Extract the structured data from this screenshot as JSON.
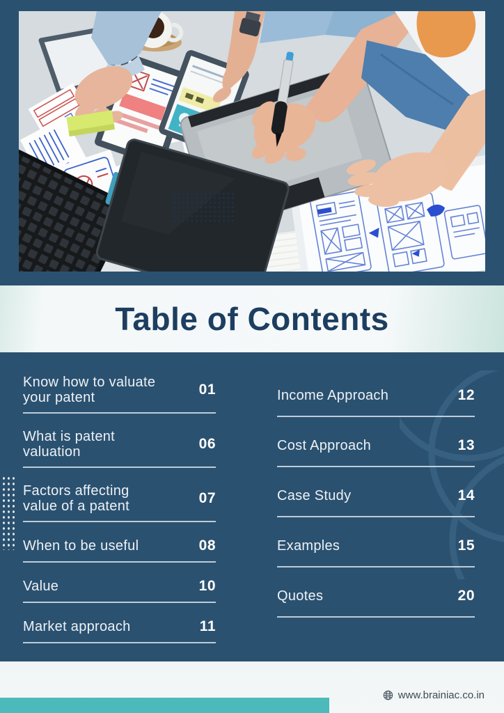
{
  "page": {
    "title": "Table of Contents",
    "website": "www.brainiac.co.in"
  },
  "toc": {
    "left_column": [
      {
        "label": "Know how to valuate your patent",
        "page": "01"
      },
      {
        "label": "What is patent valuation",
        "page": "06"
      },
      {
        "label": "Factors affecting value of a patent",
        "page": "07"
      },
      {
        "label": "When to be useful",
        "page": "08"
      },
      {
        "label": "Value",
        "page": "10"
      },
      {
        "label": "Market approach",
        "page": "11"
      }
    ],
    "right_column": [
      {
        "label": "Income Approach",
        "page": "12"
      },
      {
        "label": "Cost Approach",
        "page": "13"
      },
      {
        "label": "Case Study",
        "page": "14"
      },
      {
        "label": "Examples",
        "page": "15"
      },
      {
        "label": "Quotes",
        "page": "20"
      }
    ]
  },
  "colors": {
    "background_navy": "#2b5170",
    "title_navy": "#1d3e60",
    "band_light": "#f4f8f9",
    "accent_teal": "#4cb9ba",
    "toc_text": "#edf2f6",
    "divider": "#dee9f0"
  },
  "icons": {
    "globe": "globe-icon"
  }
}
